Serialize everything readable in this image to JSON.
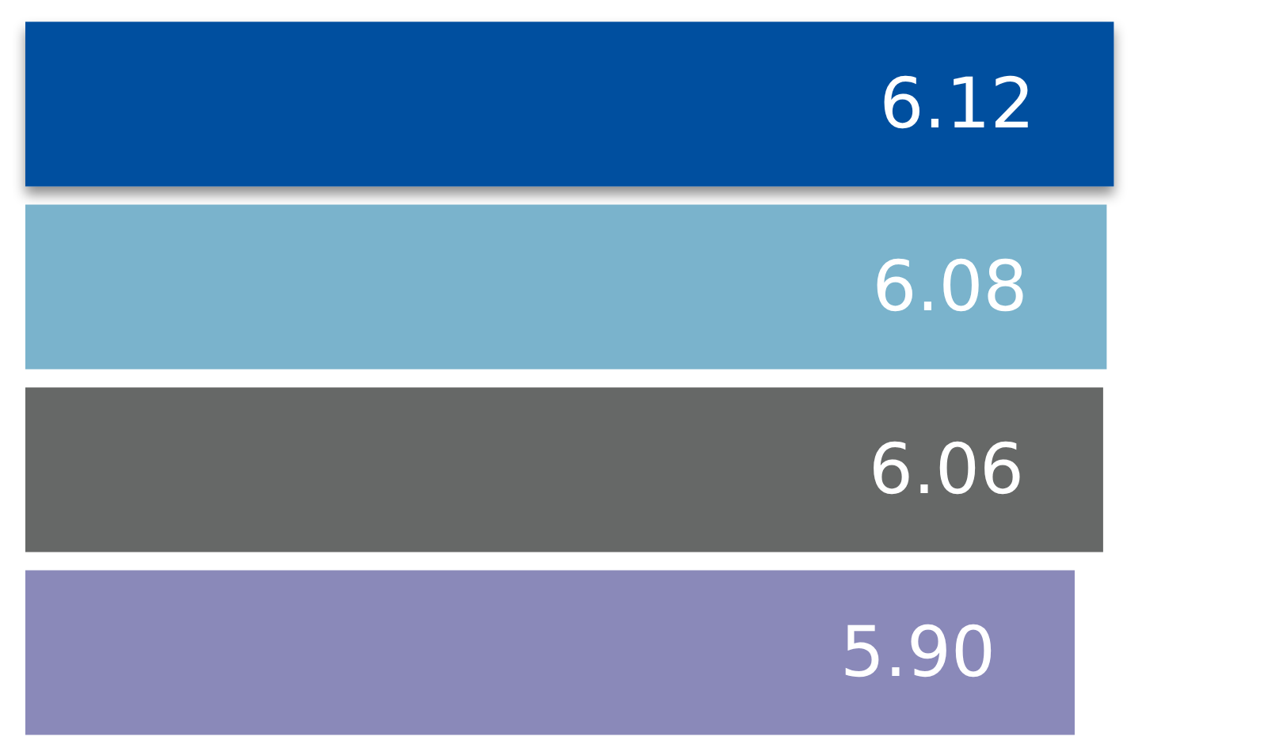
{
  "chart_data": {
    "type": "bar",
    "orientation": "horizontal",
    "categories": [
      null,
      null,
      null,
      null
    ],
    "values": [
      6.12,
      6.08,
      6.06,
      5.9
    ],
    "colors": [
      "#004f9f",
      "#7ab3cc",
      "#666867",
      "#8a89b9"
    ],
    "value_labels": [
      "6.12",
      "6.08",
      "6.06",
      "5.90"
    ]
  }
}
